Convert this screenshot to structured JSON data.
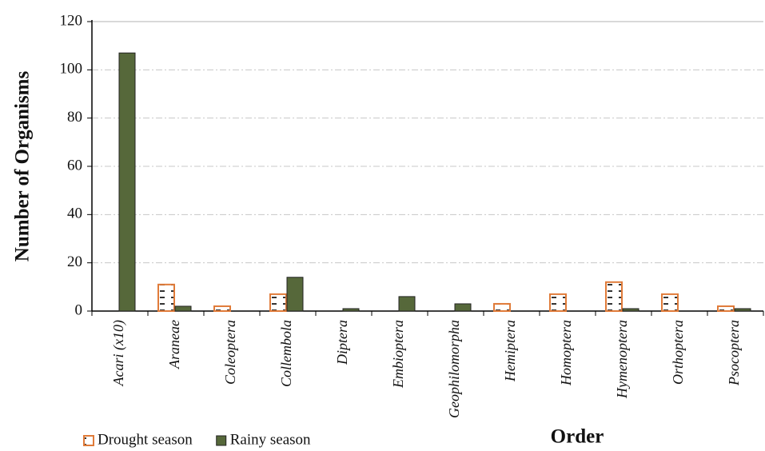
{
  "chart_data": {
    "type": "bar",
    "x_label": "Order",
    "y_label": "Number of Organisms",
    "categories": [
      "Acari (x10)",
      "Araneae",
      "Coleoptera",
      "Collembola",
      "Diptera",
      "Embioptera",
      "Geophilomorpha",
      "Hemiptera",
      "Homoptera",
      "Hymenoptera",
      "Orthoptera",
      "Psocoptera"
    ],
    "series": [
      {
        "name": "Drought season",
        "color": "#e07b39",
        "values": [
          0,
          11,
          2,
          7,
          0,
          0,
          0,
          3,
          7,
          12,
          7,
          2
        ]
      },
      {
        "name": "Rainy season",
        "color": "#56683a",
        "values": [
          107,
          2,
          0,
          14,
          1,
          6,
          3,
          0,
          0,
          1,
          0,
          1
        ]
      }
    ],
    "ylim": [
      0,
      120
    ],
    "yticks": [
      0,
      20,
      40,
      60,
      80,
      100,
      120
    ],
    "grid": true,
    "legend": "bottom-left"
  }
}
